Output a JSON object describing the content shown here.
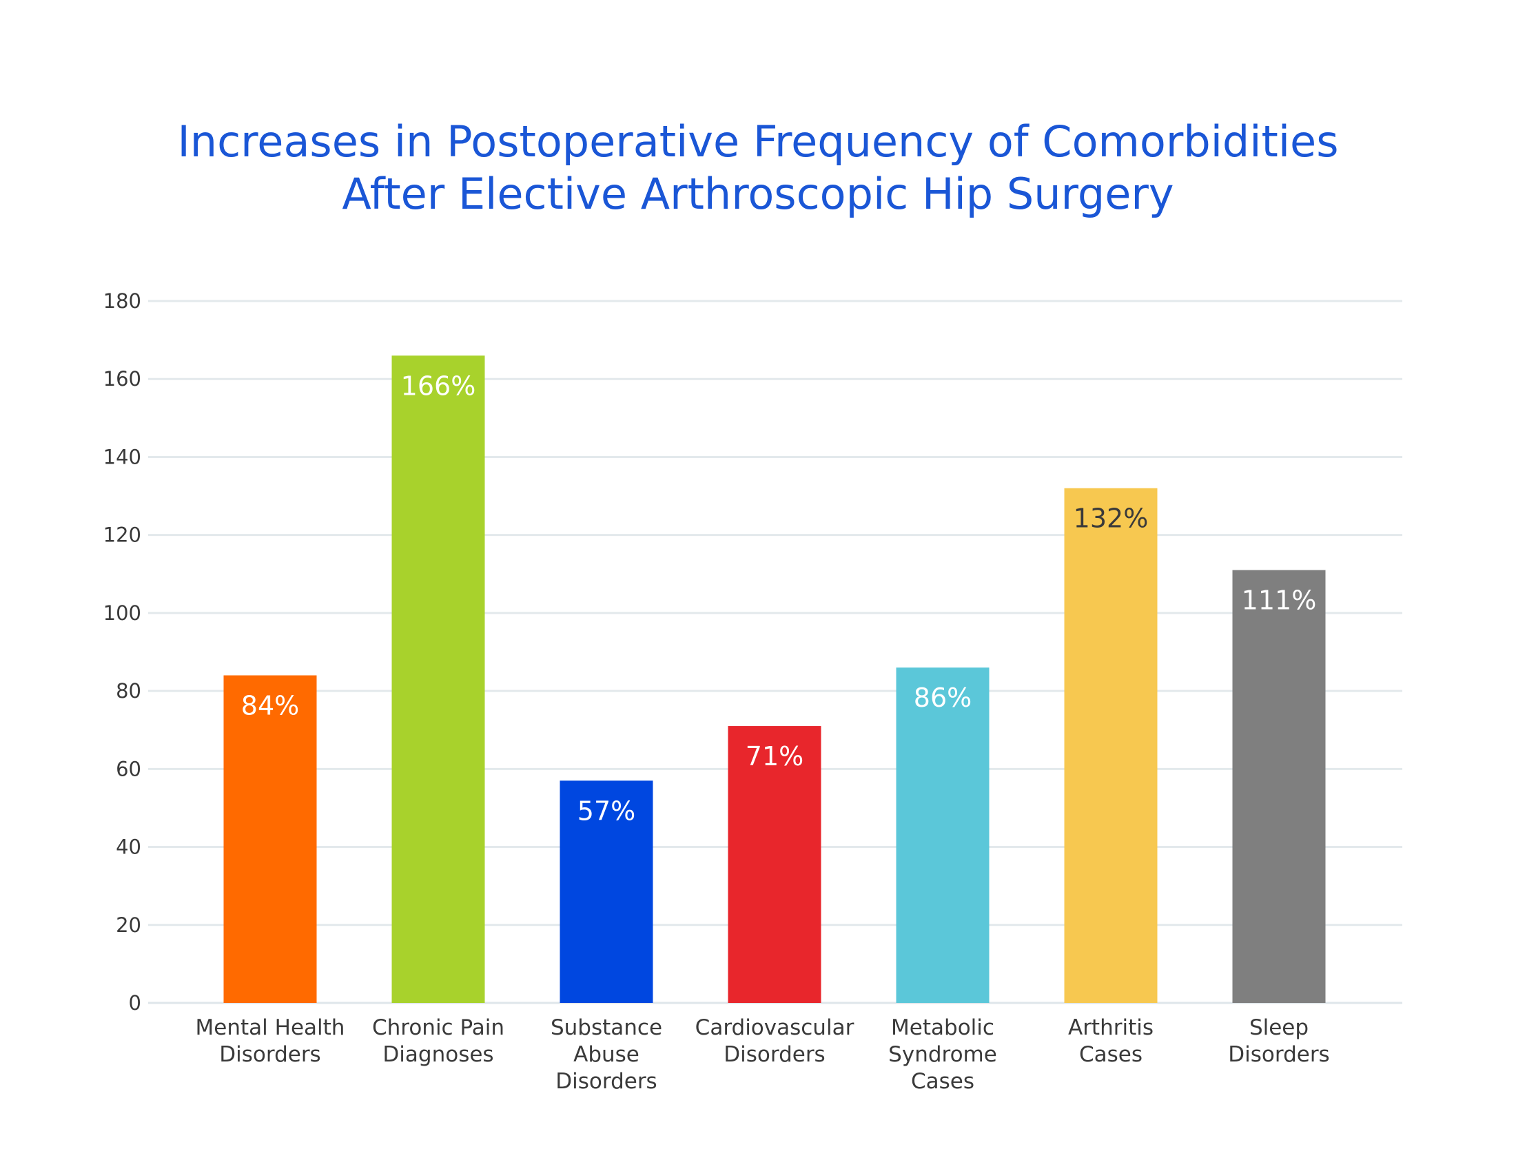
{
  "chart_data": {
    "type": "bar",
    "title_lines": [
      "Increases in Postoperative Frequency of Comorbidities",
      "After Elective Arthroscopic Hip Surgery"
    ],
    "xlabel": "",
    "ylabel": "",
    "ylim": [
      0,
      180
    ],
    "yticks": [
      0,
      20,
      40,
      60,
      80,
      100,
      120,
      140,
      160,
      180
    ],
    "grid": true,
    "legend": "none",
    "categories": [
      [
        "Mental Health",
        "Disorders"
      ],
      [
        "Chronic Pain",
        "Diagnoses"
      ],
      [
        "Substance",
        "Abuse",
        "Disorders"
      ],
      [
        "Cardiovascular",
        "Disorders"
      ],
      [
        "Metabolic",
        "Syndrome",
        "Cases"
      ],
      [
        "Arthritis",
        "Cases"
      ],
      [
        "Sleep",
        "Disorders"
      ]
    ],
    "values": [
      84,
      166,
      57,
      71,
      86,
      132,
      111
    ],
    "value_labels": [
      "84%",
      "166%",
      "57%",
      "71%",
      "86%",
      "132%",
      "111%"
    ],
    "colors": [
      "#ff6a00",
      "#a8d22c",
      "#0047e0",
      "#e8262c",
      "#5bc7d9",
      "#f7c850",
      "#7f7f7f"
    ],
    "label_colors": [
      "#ffffff",
      "#ffffff",
      "#ffffff",
      "#ffffff",
      "#ffffff",
      "#3a3a3a",
      "#ffffff"
    ]
  }
}
